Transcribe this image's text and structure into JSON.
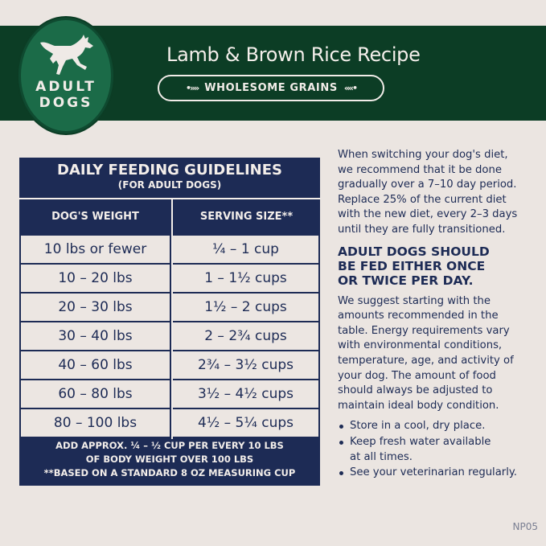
{
  "header": {
    "badge_line1": "ADULT",
    "badge_line2": "DOGS",
    "recipe_title": "Lamb & Brown Rice Recipe",
    "tag": "WHOLESOME GRAINS"
  },
  "table": {
    "title": "DAILY FEEDING GUIDELINES",
    "subtitle": "(FOR ADULT DOGS)",
    "columns": [
      "DOG'S WEIGHT",
      "SERVING SIZE**"
    ],
    "rows": [
      [
        "10 lbs or fewer",
        "¼ – 1 cup"
      ],
      [
        "10 – 20 lbs",
        "1 – 1½ cups"
      ],
      [
        "20 – 30 lbs",
        "1½ – 2 cups"
      ],
      [
        "30 – 40 lbs",
        "2 – 2¾ cups"
      ],
      [
        "40 – 60 lbs",
        "2¾ – 3½ cups"
      ],
      [
        "60 – 80 lbs",
        "3½ – 4½ cups"
      ],
      [
        "80 – 100 lbs",
        "4½ – 5¼ cups"
      ]
    ],
    "footnote_line1": "ADD APPROX. ¼ – ½ CUP PER EVERY 10 LBS",
    "footnote_line2": "OF BODY WEIGHT OVER 100 LBS",
    "footnote_line3": "**BASED ON A STANDARD 8 OZ MEASURING CUP"
  },
  "info": {
    "intro": [
      "When switching your dog's diet,",
      "we recommend that it be done",
      "gradually over a 7–10 day period.",
      "Replace 25% of the current diet",
      "with the new diet, every 2–3 days",
      "until they are fully transitioned."
    ],
    "heading": [
      "ADULT DOGS SHOULD",
      "BE FED EITHER ONCE",
      "OR TWICE PER DAY."
    ],
    "body": [
      "We suggest starting with the",
      "amounts recommended in the",
      "table. Energy requirements vary",
      "with environmental conditions,",
      "temperature, age, and activity of",
      "your dog. The amount of food",
      "should always be adjusted to",
      "maintain ideal body condition."
    ],
    "bullets": [
      "Store in a cool, dry place.",
      "Keep fresh water available at all times.",
      "See your veterinarian regularly."
    ],
    "bullet2_lines": [
      "Keep fresh water available",
      "at all times."
    ]
  },
  "code": "NP05",
  "colors": {
    "green_band": "#0c3d25",
    "badge_green": "#1b6b48",
    "navy": "#1d2b55",
    "background": "#ebe5e1"
  },
  "icons": {
    "badge": "running-dog-icon",
    "tag_decor": "wheat-icon"
  }
}
